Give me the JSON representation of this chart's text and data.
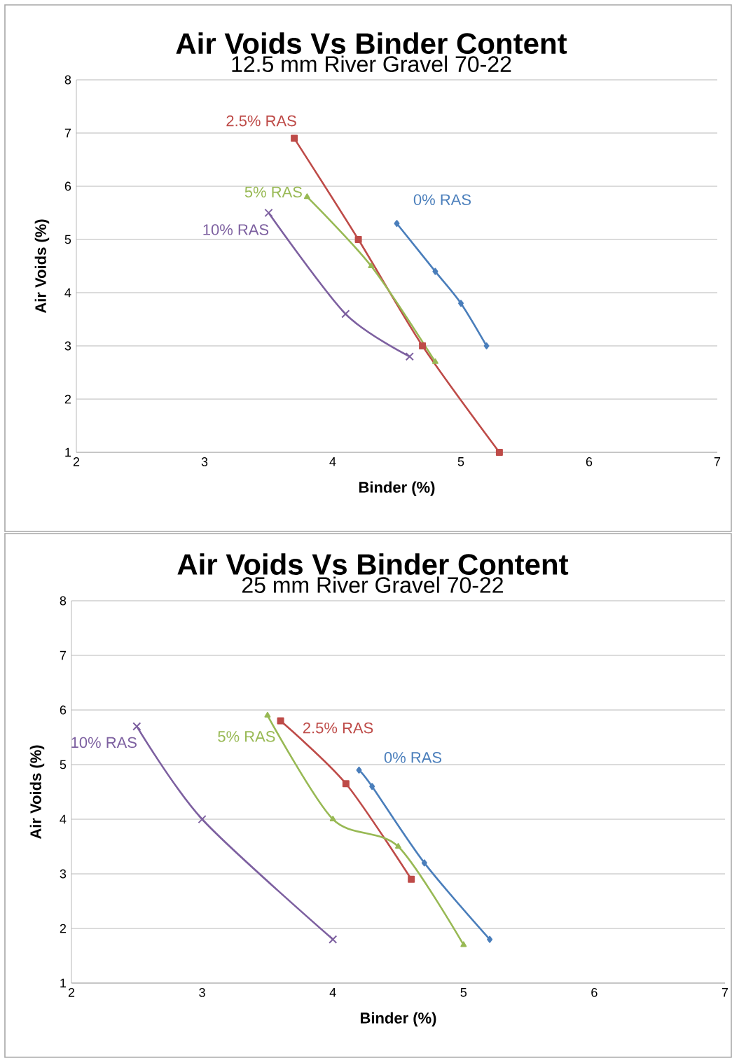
{
  "chart_data": [
    {
      "type": "line",
      "title": "Air Voids Vs Binder Content",
      "subtitle": "12.5 mm River Gravel 70-22",
      "xlabel": "Binder (%)",
      "ylabel": "Air Voids (%)",
      "xlim": [
        2,
        7
      ],
      "ylim": [
        1,
        8
      ],
      "xticks": [
        2,
        3,
        4,
        5,
        6,
        7
      ],
      "yticks": [
        1,
        2,
        3,
        4,
        5,
        6,
        7,
        8
      ],
      "grid": "y",
      "series": [
        {
          "name": "0% RAS",
          "color": "#4a7ebb",
          "marker": "diamond",
          "x": [
            4.5,
            4.8,
            5.0,
            5.2
          ],
          "values": [
            5.3,
            4.4,
            3.8,
            3.0
          ]
        },
        {
          "name": "2.5% RAS",
          "color": "#be4b48",
          "marker": "square",
          "x": [
            3.7,
            4.2,
            4.7,
            5.3
          ],
          "values": [
            6.9,
            5.0,
            3.0,
            1.0
          ]
        },
        {
          "name": "5% RAS",
          "color": "#98b954",
          "marker": "triangle",
          "x": [
            3.8,
            4.3,
            4.8
          ],
          "values": [
            5.8,
            4.5,
            2.7
          ]
        },
        {
          "name": "10% RAS",
          "color": "#7d60a0",
          "marker": "cross",
          "x": [
            3.5,
            4.1,
            4.6
          ],
          "values": [
            5.5,
            3.6,
            2.8
          ]
        }
      ]
    },
    {
      "type": "line",
      "title": "Air Voids Vs Binder Content",
      "subtitle": "25 mm River Gravel 70-22",
      "xlabel": "Binder (%)",
      "ylabel": "Air Voids (%)",
      "xlim": [
        2,
        7
      ],
      "ylim": [
        1,
        8
      ],
      "xticks": [
        2,
        3,
        4,
        5,
        6,
        7
      ],
      "yticks": [
        1,
        2,
        3,
        4,
        5,
        6,
        7,
        8
      ],
      "grid": "y",
      "series": [
        {
          "name": "0% RAS",
          "color": "#4a7ebb",
          "marker": "diamond",
          "x": [
            4.2,
            4.3,
            4.7,
            5.2
          ],
          "values": [
            4.9,
            4.6,
            3.2,
            1.8
          ]
        },
        {
          "name": "2.5% RAS",
          "color": "#be4b48",
          "marker": "square",
          "x": [
            3.6,
            4.1,
            4.6
          ],
          "values": [
            5.8,
            4.65,
            2.9
          ]
        },
        {
          "name": "5% RAS",
          "color": "#98b954",
          "marker": "triangle",
          "x": [
            3.5,
            4.0,
            4.5,
            5.0
          ],
          "values": [
            5.9,
            4.0,
            3.5,
            1.7
          ]
        },
        {
          "name": "10% RAS",
          "color": "#7d60a0",
          "marker": "cross",
          "x": [
            2.5,
            3.0,
            4.0
          ],
          "values": [
            5.7,
            4.0,
            1.8
          ]
        }
      ]
    }
  ]
}
